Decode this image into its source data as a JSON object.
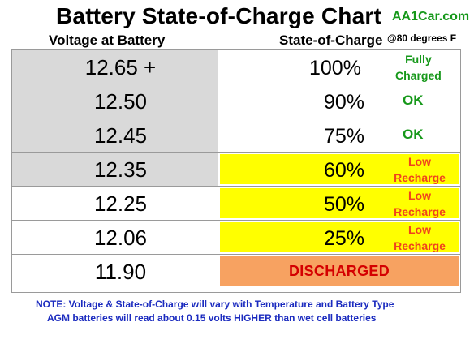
{
  "header": {
    "title": "Battery State-of-Charge Chart",
    "brand": "AA1Car.com",
    "col_voltage": "Voltage at Battery",
    "col_charge": "State-of-Charge",
    "temperature_note": "@80 degrees F"
  },
  "rows": [
    {
      "voltage": "12.65 +",
      "charge": "100%",
      "status": [
        "Fully",
        "Charged"
      ],
      "status_color": "#16981a",
      "voltage_bg": "#d9d9d9",
      "charge_bg": "#ffffff"
    },
    {
      "voltage": "12.50",
      "charge": "90%",
      "status": [
        "OK"
      ],
      "status_color": "#16981a",
      "voltage_bg": "#d9d9d9",
      "charge_bg": "#ffffff"
    },
    {
      "voltage": "12.45",
      "charge": "75%",
      "status": [
        "OK"
      ],
      "status_color": "#16981a",
      "voltage_bg": "#d9d9d9",
      "charge_bg": "#ffffff"
    },
    {
      "voltage": "12.35",
      "charge": "60%",
      "status": [
        "Low",
        "Recharge"
      ],
      "status_color": "#f0431d",
      "voltage_bg": "#d9d9d9",
      "charge_bg": "#ffff00"
    },
    {
      "voltage": "12.25",
      "charge": "50%",
      "status": [
        "Low",
        "Recharge"
      ],
      "status_color": "#f0431d",
      "voltage_bg": "#ffffff",
      "charge_bg": "#ffff00"
    },
    {
      "voltage": "12.06",
      "charge": "25%",
      "status": [
        "Low",
        "Recharge"
      ],
      "status_color": "#f0431d",
      "voltage_bg": "#ffffff",
      "charge_bg": "#ffff00"
    },
    {
      "voltage": "11.90",
      "charge": "DISCHARGED",
      "status": [],
      "status_color": "#d40000",
      "voltage_bg": "#ffffff",
      "charge_bg": "#f7a261"
    }
  ],
  "note": {
    "line1": "NOTE:  Voltage & State-of-Charge will vary with Temperature and Battery Type",
    "line2": "AGM batteries will read about 0.15 volts HIGHER than wet cell batteries"
  }
}
